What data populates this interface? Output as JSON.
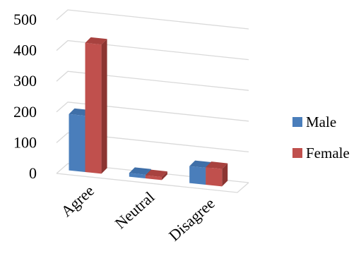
{
  "chart_data": {
    "type": "bar",
    "title": "",
    "xlabel": "",
    "ylabel": "",
    "categories": [
      "Agree",
      "Neutral",
      "Disagree"
    ],
    "series": [
      {
        "name": "Male",
        "values": [
          183,
          12,
          55
        ],
        "color": "#4A7EBB",
        "side": "#2F5A8E",
        "top": "#3F6FA8"
      },
      {
        "name": "Female",
        "values": [
          420,
          10,
          57
        ],
        "color": "#C0504D",
        "side": "#8C3532",
        "top": "#A8423F"
      }
    ],
    "ylim": [
      0,
      500
    ],
    "yticks": [
      0,
      100,
      200,
      300,
      400,
      500
    ],
    "grid": true,
    "legend": "right",
    "style": "3d-clustered-column"
  }
}
